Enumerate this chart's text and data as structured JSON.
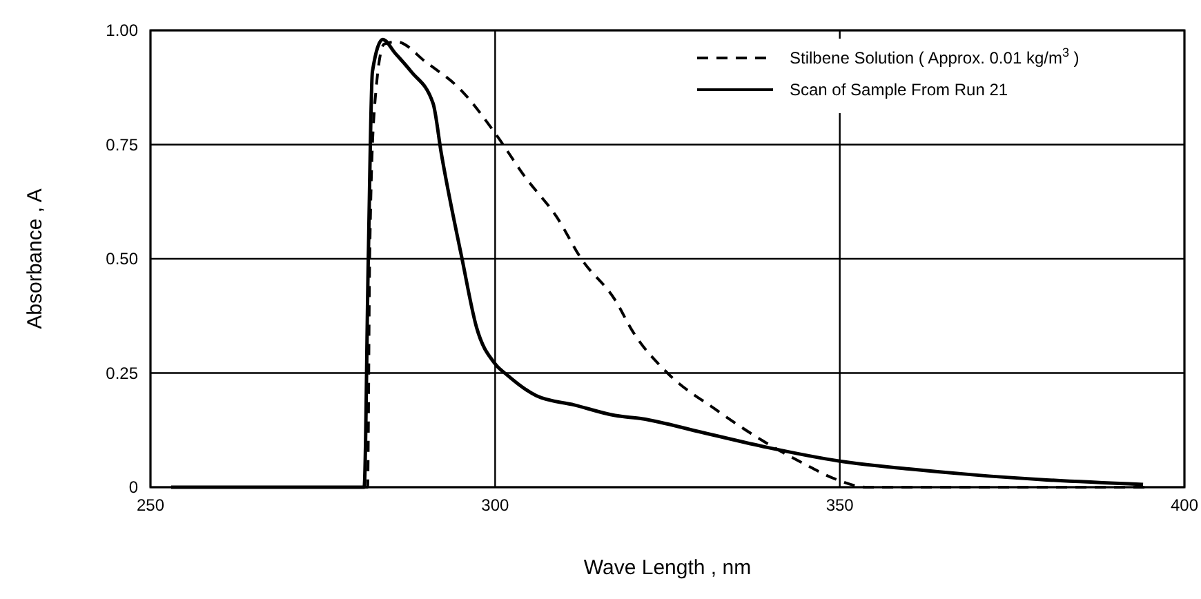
{
  "chart_data": {
    "type": "line",
    "xlabel": "Wave Length ,  nm",
    "ylabel": "Absorbance ,  A",
    "xlim": [
      250,
      400
    ],
    "xticks": [
      250,
      300,
      350,
      400
    ],
    "ylim": [
      0,
      1
    ],
    "yticks": [
      0,
      0.25,
      {
        "value": 0.5,
        "label": "0.50"
      },
      0.75,
      {
        "value": 1,
        "label": "1.00"
      }
    ],
    "grid": true,
    "legend": "top right",
    "series": [
      {
        "name": "Stilbene Solution ( Approx.  0.01 kg/m$^{3}$ )",
        "color": "#000000",
        "line_style": "dashed",
        "x": [
          253,
          281.5,
          281.8,
          282.5,
          283.9,
          285.7,
          290,
          295,
          300,
          304.3,
          309,
          312.5,
          317.4,
          320,
          325,
          332,
          339,
          345,
          349,
          354,
          370,
          395
        ],
        "values": [
          0,
          0,
          0.5,
          0.83,
          0.97,
          0.975,
          0.93,
          0.87,
          0.775,
          0.68,
          0.59,
          0.5,
          0.41,
          0.34,
          0.25,
          0.17,
          0.1,
          0.05,
          0.02,
          0,
          0,
          0
        ]
      },
      {
        "name": "Scan of Sample From Run 21",
        "color": "#000000",
        "line_style": "solid",
        "x": [
          253,
          281,
          281.6,
          282.2,
          283.7,
          285.5,
          287.8,
          291,
          292.2,
          295.2,
          297.3,
          300,
          301.8,
          306,
          311.5,
          317.4,
          321.3,
          330,
          339.5,
          350,
          360,
          369.5,
          380,
          394
        ],
        "values": [
          0,
          0,
          0.5,
          0.91,
          0.98,
          0.95,
          0.91,
          0.84,
          0.73,
          0.5,
          0.35,
          0.27,
          0.245,
          0.2,
          0.18,
          0.157,
          0.15,
          0.12,
          0.087,
          0.057,
          0.04,
          0.027,
          0.016,
          0.006
        ]
      }
    ]
  }
}
